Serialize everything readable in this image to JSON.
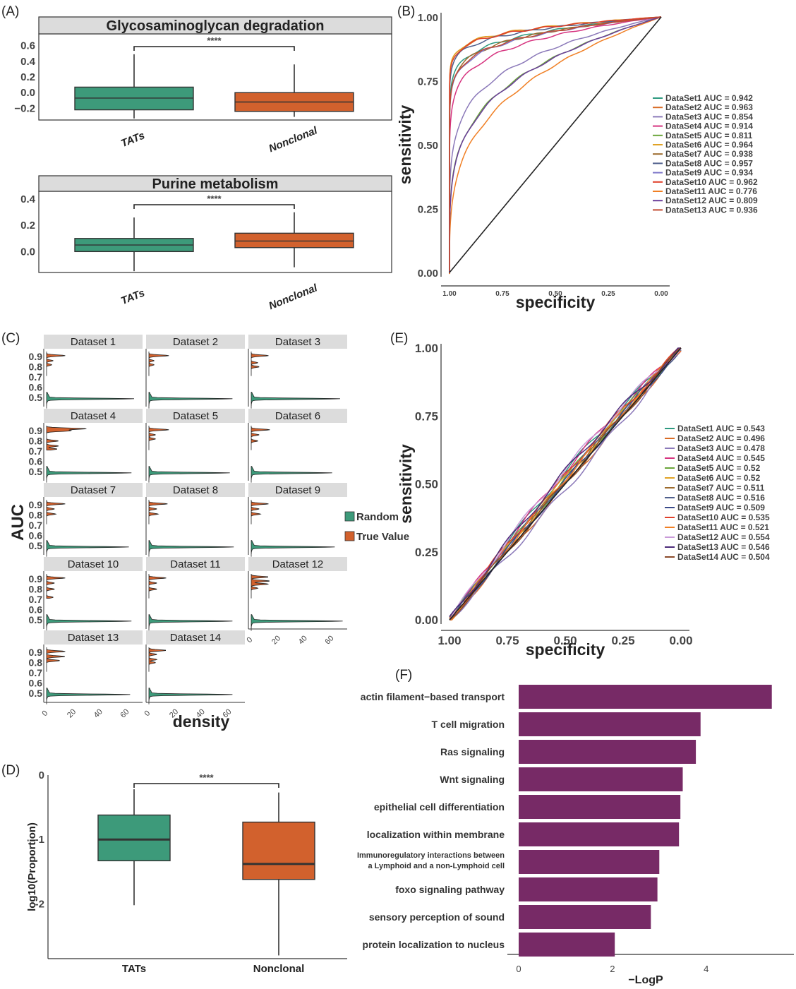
{
  "panels": {
    "A": "(A)",
    "B": "(B)",
    "C": "(C)",
    "D": "(D)",
    "E": "(E)",
    "F": "(F)"
  },
  "colors": {
    "tats": "#3d9a7a",
    "nonclonal": "#d2612d",
    "bar": "#772a66",
    "strip": "#dcdcdc"
  },
  "chart_data": [
    {
      "panel": "A1",
      "type": "box",
      "title": "Glycosaminoglycan degradation",
      "categories": [
        "TATs",
        "Nonclonal"
      ],
      "ylim": [
        -0.35,
        0.75
      ],
      "yticks": [
        0.6,
        0.4,
        0.2,
        0.0,
        -0.2
      ],
      "ytick_labels": [
        "0.6",
        "0.4",
        "0.2",
        "0.0",
        "−0.2"
      ],
      "significance": "****",
      "boxes": [
        {
          "min": -0.33,
          "q1": -0.22,
          "median": -0.07,
          "q3": 0.07,
          "max": 0.49
        },
        {
          "min": -0.31,
          "q1": -0.24,
          "median": -0.12,
          "q3": 0.0,
          "max": 0.36
        }
      ]
    },
    {
      "panel": "A2",
      "type": "box",
      "title": "Purine metabolism",
      "categories": [
        "TATs",
        "Nonclonal"
      ],
      "ylim": [
        -0.16,
        0.46
      ],
      "yticks": [
        0.4,
        0.2,
        0.0
      ],
      "ytick_labels": [
        "0.4",
        "0.2",
        "0.0"
      ],
      "significance": "****",
      "boxes": [
        {
          "min": -0.15,
          "q1": 0.0,
          "median": 0.05,
          "q3": 0.1,
          "max": 0.26
        },
        {
          "min": -0.12,
          "q1": 0.03,
          "median": 0.08,
          "q3": 0.14,
          "max": 0.3
        }
      ]
    },
    {
      "panel": "B",
      "type": "line",
      "xlabel": "specificity",
      "ylabel": "sensitivity",
      "xlim": [
        1.0,
        0.0
      ],
      "ylim": [
        0.0,
        1.0
      ],
      "xtick_labels": [
        "1.00",
        "0.75",
        "0.50",
        "0.25",
        "0.00"
      ],
      "ytick_labels": [
        "0.00",
        "0.25",
        "0.50",
        "0.75",
        "1.00"
      ],
      "series": [
        {
          "name": "DataSet1 AUC = 0.942",
          "auc": 0.942,
          "color": "#2e9a80"
        },
        {
          "name": "DataSet2 AUC = 0.963",
          "auc": 0.963,
          "color": "#d86c26"
        },
        {
          "name": "DataSet3 AUC = 0.854",
          "auc": 0.854,
          "color": "#8b79b9"
        },
        {
          "name": "DataSet4 AUC = 0.914",
          "auc": 0.914,
          "color": "#d6337f"
        },
        {
          "name": "DataSet5 AUC = 0.811",
          "auc": 0.811,
          "color": "#6aa53a"
        },
        {
          "name": "DataSet6 AUC = 0.964",
          "auc": 0.964,
          "color": "#e0a224"
        },
        {
          "name": "DataSet7 AUC = 0.938",
          "auc": 0.938,
          "color": "#9c6b2d"
        },
        {
          "name": "DataSet8 AUC = 0.957",
          "auc": 0.957,
          "color": "#4f5f8c"
        },
        {
          "name": "DataSet9 AUC = 0.934",
          "auc": 0.934,
          "color": "#7e78c9"
        },
        {
          "name": "DataSet10 AUC = 0.962",
          "auc": 0.962,
          "color": "#e0402a"
        },
        {
          "name": "DataSet11 AUC = 0.776",
          "auc": 0.776,
          "color": "#f07f24"
        },
        {
          "name": "DataSet12 AUC = 0.809",
          "auc": 0.809,
          "color": "#6a3d9a"
        },
        {
          "name": "DataSet13 AUC = 0.936",
          "auc": 0.936,
          "color": "#c24a30"
        }
      ]
    },
    {
      "panel": "C",
      "type": "area",
      "ylabel": "AUC",
      "xlabel": "density",
      "yticks": [
        0.5,
        0.6,
        0.7,
        0.8,
        0.9
      ],
      "ytick_labels": [
        "0.5",
        "0.6",
        "0.7",
        "0.8",
        "0.9"
      ],
      "xticks": [
        0,
        20,
        40,
        60
      ],
      "legend": [
        {
          "name": "Random",
          "color": "#3d9a7a"
        },
        {
          "name": "True Value",
          "color": "#d2612d"
        }
      ],
      "facets": [
        {
          "title": "Dataset 1",
          "true_peaks": [
            [
              0.91,
              14
            ],
            [
              0.86,
              5
            ],
            [
              0.82,
              4
            ]
          ],
          "random_peak": 65
        },
        {
          "title": "Dataset 2",
          "true_peaks": [
            [
              0.91,
              15
            ],
            [
              0.86,
              4
            ],
            [
              0.82,
              4
            ]
          ],
          "random_peak": 62
        },
        {
          "title": "Dataset 3",
          "true_peaks": [
            [
              0.91,
              13
            ],
            [
              0.84,
              5
            ],
            [
              0.8,
              6
            ]
          ],
          "random_peak": 66
        },
        {
          "title": "Dataset 4",
          "true_peaks": [
            [
              0.92,
              30
            ],
            [
              0.9,
              18
            ],
            [
              0.8,
              9
            ],
            [
              0.75,
              9
            ],
            [
              0.72,
              8
            ]
          ],
          "random_peak": 63
        },
        {
          "title": "Dataset 5",
          "true_peaks": [
            [
              0.91,
              15
            ],
            [
              0.86,
              5
            ],
            [
              0.82,
              5
            ]
          ],
          "random_peak": 60
        },
        {
          "title": "Dataset 6",
          "true_peaks": [
            [
              0.91,
              14
            ],
            [
              0.86,
              6
            ],
            [
              0.8,
              5
            ]
          ],
          "random_peak": 60
        },
        {
          "title": "Dataset 7",
          "true_peaks": [
            [
              0.91,
              14
            ],
            [
              0.86,
              6
            ],
            [
              0.81,
              7
            ]
          ],
          "random_peak": 61
        },
        {
          "title": "Dataset 8",
          "true_peaks": [
            [
              0.91,
              14
            ],
            [
              0.86,
              6
            ],
            [
              0.81,
              7
            ]
          ],
          "random_peak": 63
        },
        {
          "title": "Dataset 9",
          "true_peaks": [
            [
              0.91,
              13
            ],
            [
              0.86,
              6
            ],
            [
              0.81,
              7
            ]
          ],
          "random_peak": 62
        },
        {
          "title": "Dataset 10",
          "true_peaks": [
            [
              0.91,
              14
            ],
            [
              0.86,
              6
            ],
            [
              0.8,
              6
            ],
            [
              0.72,
              5
            ]
          ],
          "random_peak": 63
        },
        {
          "title": "Dataset 11",
          "true_peaks": [
            [
              0.91,
              13
            ],
            [
              0.86,
              6
            ],
            [
              0.8,
              6
            ]
          ],
          "random_peak": 62
        },
        {
          "title": "Dataset 12",
          "true_peaks": [
            [
              0.92,
              13
            ],
            [
              0.88,
              14
            ],
            [
              0.85,
              13
            ],
            [
              0.81,
              5
            ]
          ],
          "random_peak": 68
        },
        {
          "title": "Dataset 13",
          "true_peaks": [
            [
              0.91,
              14
            ],
            [
              0.86,
              14
            ],
            [
              0.82,
              10
            ]
          ],
          "random_peak": 62
        },
        {
          "title": "Dataset 14",
          "true_peaks": [
            [
              0.92,
              13
            ],
            [
              0.88,
              6
            ],
            [
              0.83,
              6
            ],
            [
              0.8,
              5
            ]
          ],
          "random_peak": 62
        }
      ]
    },
    {
      "panel": "D",
      "type": "box",
      "ylabel": "log10(Proportion)",
      "categories": [
        "TATs",
        "Nonclonal"
      ],
      "ylim": [
        -2.85,
        0.0
      ],
      "yticks": [
        0,
        -1,
        -2
      ],
      "ytick_labels": [
        "0",
        "-1",
        "-2"
      ],
      "significance": "****",
      "boxes": [
        {
          "min": -2.02,
          "q1": -1.33,
          "median": -1.0,
          "q3": -0.62,
          "max": -0.22
        },
        {
          "min": -2.8,
          "q1": -1.62,
          "median": -1.38,
          "q3": -0.73,
          "max": -0.27
        }
      ]
    },
    {
      "panel": "E",
      "type": "line",
      "xlabel": "specificity",
      "ylabel": "sensitivity",
      "xlim": [
        1.0,
        0.0
      ],
      "ylim": [
        0.0,
        1.0
      ],
      "xtick_labels": [
        "1.00",
        "0.75",
        "0.50",
        "0.25",
        "0.00"
      ],
      "ytick_labels": [
        "0.00",
        "0.25",
        "0.50",
        "0.75",
        "1.00"
      ],
      "series": [
        {
          "name": "DataSet1 AUC = 0.543",
          "auc": 0.543,
          "color": "#2e9a80"
        },
        {
          "name": "DataSet2 AUC = 0.496",
          "auc": 0.496,
          "color": "#d86c26"
        },
        {
          "name": "DataSet3 AUC = 0.478",
          "auc": 0.478,
          "color": "#8b79b9"
        },
        {
          "name": "DataSet4 AUC = 0.545",
          "auc": 0.545,
          "color": "#d6337f"
        },
        {
          "name": "DataSet5 AUC = 0.52",
          "auc": 0.52,
          "color": "#6aa53a"
        },
        {
          "name": "DataSet6 AUC = 0.52",
          "auc": 0.52,
          "color": "#e0a224"
        },
        {
          "name": "DataSet7 AUC = 0.511",
          "auc": 0.511,
          "color": "#9c6b2d"
        },
        {
          "name": "DataSet8 AUC = 0.516",
          "auc": 0.516,
          "color": "#4f5f8c"
        },
        {
          "name": "DataSet9 AUC = 0.509",
          "auc": 0.509,
          "color": "#3a4a8a"
        },
        {
          "name": "DataSet10 AUC = 0.535",
          "auc": 0.535,
          "color": "#e0402a"
        },
        {
          "name": "DataSet11 AUC = 0.521",
          "auc": 0.521,
          "color": "#f07f24"
        },
        {
          "name": "DataSet12 AUC = 0.554",
          "auc": 0.554,
          "color": "#c99ad8"
        },
        {
          "name": "DataSet13 AUC = 0.546",
          "auc": 0.546,
          "color": "#4b2a78"
        },
        {
          "name": "DataSet14 AUC = 0.504",
          "auc": 0.504,
          "color": "#8a4a2a"
        }
      ]
    },
    {
      "panel": "F",
      "type": "bar",
      "orientation": "horizontal",
      "xlabel": "−LogP",
      "xlim": [
        0,
        5.6
      ],
      "xticks": [
        0,
        2,
        4
      ],
      "categories": [
        "actin filament−based transport",
        "T cell migration",
        "Ras signaling",
        "Wnt signaling",
        "epithelial cell differentiation",
        "localization within membrane",
        "Immunoregulatory interactions between a Lymphoid and a non-Lymphoid cell",
        "foxo signaling pathway",
        "sensory perception of sound",
        "protein localization to nucleus"
      ],
      "category_lines": [
        [
          "actin filament−based transport"
        ],
        [
          "T cell migration"
        ],
        [
          "Ras signaling"
        ],
        [
          "Wnt signaling"
        ],
        [
          "epithelial cell differentiation"
        ],
        [
          "localization within membrane"
        ],
        [
          "Immunoregulatory interactions between",
          "a Lymphoid and a non-Lymphoid cell"
        ],
        [
          "foxo signaling pathway"
        ],
        [
          "sensory perception of sound"
        ],
        [
          "protein localization to nucleus"
        ]
      ],
      "values": [
        5.4,
        3.88,
        3.78,
        3.5,
        3.45,
        3.42,
        3.0,
        2.96,
        2.82,
        2.05
      ]
    }
  ]
}
